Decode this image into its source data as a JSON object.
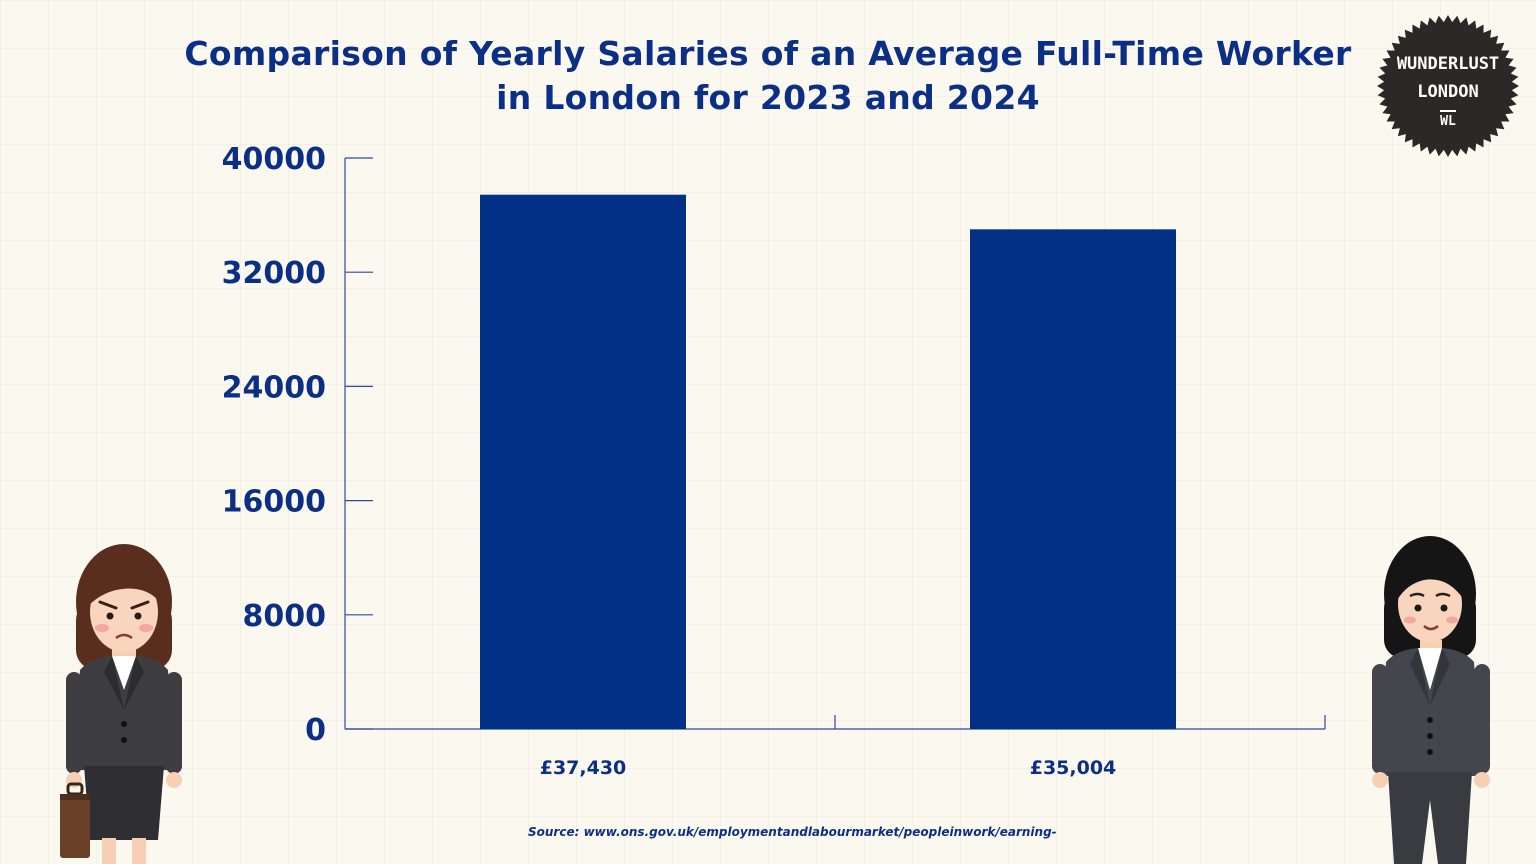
{
  "title": "Comparison of Yearly Salaries of an Average Full-Time Worker in London for 2023 and 2024",
  "source": "Source: www.ons.gov.uk/employmentandlabourmarket/peopleinwork/earning-",
  "logo": {
    "line1": "WUNDERLUST",
    "line2": "LONDON",
    "line3": "WL",
    "color": "#2b2928"
  },
  "colors": {
    "bar": "#023087",
    "text": "#0c2f86",
    "axis": "#2d4aa0",
    "background": "#fbf9ef"
  },
  "chart_data": {
    "type": "bar",
    "title": "Comparison of Yearly Salaries of an Average Full-Time Worker in London for 2023 and 2024",
    "categories": [
      "£37,430",
      "£35,004"
    ],
    "values": [
      37430,
      35004
    ],
    "data_labels": [
      "£37,430",
      "£35,004"
    ],
    "ylim": [
      0,
      40000
    ],
    "yticks": [
      0,
      8000,
      16000,
      24000,
      32000,
      40000
    ],
    "ytick_labels": [
      "0",
      "8000",
      "16000",
      "24000",
      "32000",
      "40000"
    ],
    "xlabel": "",
    "ylabel": "",
    "grid": false,
    "legend": "none"
  }
}
